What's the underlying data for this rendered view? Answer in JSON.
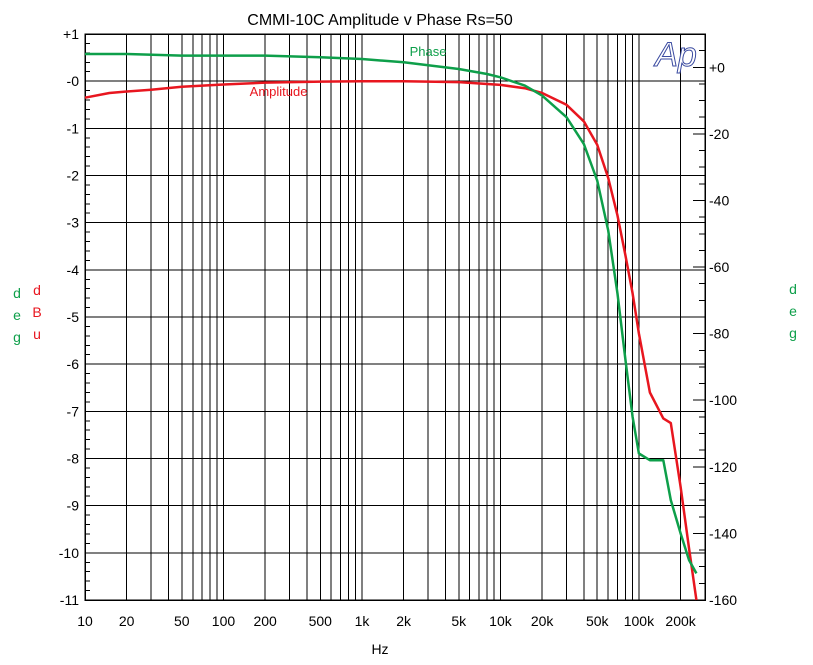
{
  "chart_data": {
    "type": "line",
    "title": "CMMI-10C    Amplitude v Phase Rs=50",
    "xlabel": "Hz",
    "x_scale": "log",
    "xlim": [
      10,
      300000
    ],
    "x_tick_labels": [
      {
        "v": 10,
        "t": "10"
      },
      {
        "v": 20,
        "t": "20"
      },
      {
        "v": 50,
        "t": "50"
      },
      {
        "v": 100,
        "t": "100"
      },
      {
        "v": 200,
        "t": "200"
      },
      {
        "v": 500,
        "t": "500"
      },
      {
        "v": 1000,
        "t": "1k"
      },
      {
        "v": 2000,
        "t": "2k"
      },
      {
        "v": 5000,
        "t": "5k"
      },
      {
        "v": 10000,
        "t": "10k"
      },
      {
        "v": 20000,
        "t": "20k"
      },
      {
        "v": 50000,
        "t": "50k"
      },
      {
        "v": 100000,
        "t": "100k"
      },
      {
        "v": 200000,
        "t": "200k"
      }
    ],
    "left_axis": {
      "ylim": [
        -11,
        1
      ],
      "ticks": [
        {
          "v": 1,
          "t": "+1"
        },
        {
          "v": 0,
          "t": "-0"
        },
        {
          "v": -1,
          "t": "-1"
        },
        {
          "v": -2,
          "t": "-2"
        },
        {
          "v": -3,
          "t": "-3"
        },
        {
          "v": -4,
          "t": "-4"
        },
        {
          "v": -5,
          "t": "-5"
        },
        {
          "v": -6,
          "t": "-6"
        },
        {
          "v": -7,
          "t": "-7"
        },
        {
          "v": -8,
          "t": "-8"
        },
        {
          "v": -9,
          "t": "-9"
        },
        {
          "v": -10,
          "t": "-10"
        },
        {
          "v": -11,
          "t": "-11"
        }
      ],
      "label_red": "dBu",
      "label_green": "deg"
    },
    "right_axis": {
      "ylim": [
        -160,
        10
      ],
      "ticks": [
        {
          "v": 0,
          "t": "+0"
        },
        {
          "v": -20,
          "t": "-20"
        },
        {
          "v": -40,
          "t": "-40"
        },
        {
          "v": -60,
          "t": "-60"
        },
        {
          "v": -80,
          "t": "-80"
        },
        {
          "v": -100,
          "t": "-100"
        },
        {
          "v": -120,
          "t": "-120"
        },
        {
          "v": -140,
          "t": "-140"
        },
        {
          "v": -160,
          "t": "-160"
        }
      ],
      "label": "deg"
    },
    "grid": true,
    "logo": "Ap",
    "series": [
      {
        "name": "Amplitude",
        "axis": "left",
        "color": "#e8161f",
        "x": [
          10,
          15,
          20,
          30,
          50,
          100,
          200,
          500,
          1000,
          2000,
          5000,
          10000,
          15000,
          20000,
          30000,
          40000,
          50000,
          60000,
          70000,
          80000,
          90000,
          100000,
          120000,
          150000,
          170000,
          200000,
          230000,
          260000
        ],
        "y": [
          -0.35,
          -0.25,
          -0.22,
          -0.18,
          -0.12,
          -0.07,
          -0.03,
          -0.01,
          0,
          0,
          -0.02,
          -0.08,
          -0.15,
          -0.25,
          -0.5,
          -0.85,
          -1.35,
          -2.05,
          -2.85,
          -3.7,
          -4.5,
          -5.35,
          -6.6,
          -7.15,
          -7.25,
          -8.6,
          -9.9,
          -11
        ]
      },
      {
        "name": "Phase",
        "axis": "right",
        "color": "#0e9f4a",
        "x": [
          10,
          20,
          50,
          100,
          200,
          500,
          1000,
          2000,
          5000,
          8000,
          10000,
          15000,
          20000,
          30000,
          40000,
          50000,
          60000,
          70000,
          80000,
          90000,
          100000,
          120000,
          150000,
          170000,
          200000,
          230000,
          260000
        ],
        "y": [
          4,
          4,
          3.5,
          3.5,
          3.5,
          3,
          2.5,
          1.5,
          -0.5,
          -2,
          -3,
          -5.5,
          -8.5,
          -15,
          -23,
          -34,
          -49,
          -68,
          -88,
          -105,
          -116,
          -118,
          -118,
          -130,
          -140,
          -148,
          -152
        ]
      }
    ]
  }
}
